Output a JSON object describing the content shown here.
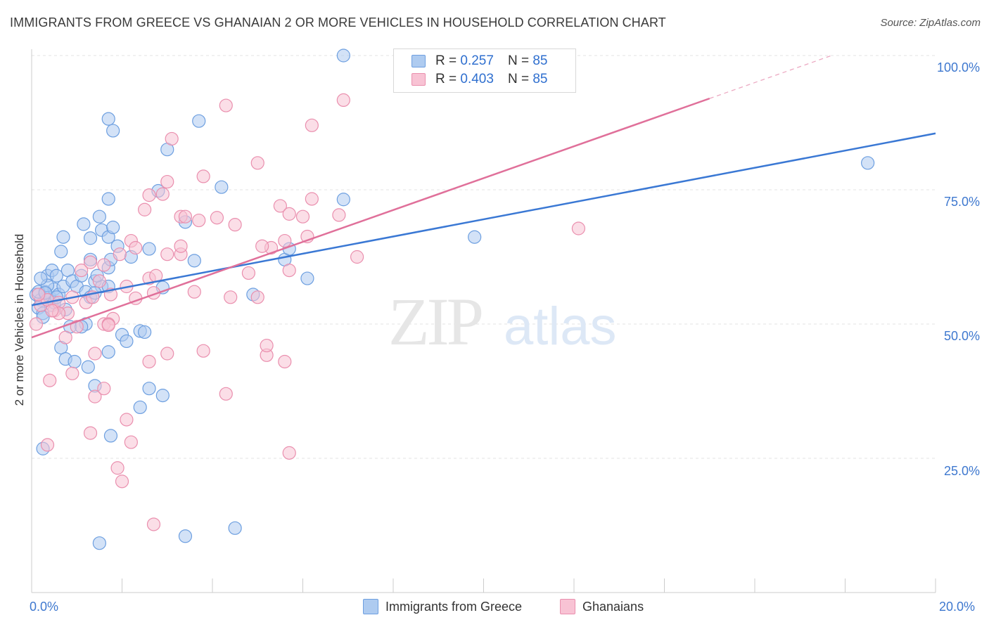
{
  "title": "IMMIGRANTS FROM GREECE VS GHANAIAN 2 OR MORE VEHICLES IN HOUSEHOLD CORRELATION CHART",
  "source": "Source: ZipAtlas.com",
  "watermark": {
    "zip": "ZIP",
    "atlas": "atlas"
  },
  "legend": {
    "rows": [
      {
        "r_label": "R =",
        "r_value": "0.257",
        "n_label": "N =",
        "n_value": "85",
        "color": "#aecbf0",
        "border": "#6d9fe0"
      },
      {
        "r_label": "R =",
        "r_value": "0.403",
        "n_label": "N =",
        "n_value": "85",
        "color": "#f8c3d4",
        "border": "#ea8fae"
      }
    ]
  },
  "bottom_legend": [
    {
      "label": "Immigrants from Greece",
      "color": "#aecbf0",
      "border": "#6d9fe0"
    },
    {
      "label": "Ghanaians",
      "color": "#f8c3d4",
      "border": "#ea8fae"
    }
  ],
  "axes": {
    "ylabel": "2 or more Vehicles in Household",
    "x_tick_labels": [
      "0.0%",
      "20.0%"
    ],
    "y_tick_labels": [
      "100.0%",
      "75.0%",
      "50.0%",
      "25.0%"
    ]
  },
  "chart_data": {
    "type": "scatter",
    "title": "IMMIGRANTS FROM GREECE VS GHANAIAN 2 OR MORE VEHICLES IN HOUSEHOLD CORRELATION CHART",
    "xlabel": "",
    "ylabel": "2 or more Vehicles in Household",
    "xlim": [
      0,
      20
    ],
    "ylim": [
      0,
      102
    ],
    "grid": true,
    "series": [
      {
        "name": "Immigrants from Greece",
        "color": "#6d9fe0",
        "fill": "#aecbf0",
        "trend": {
          "x0": 0,
          "y0": 53.5,
          "x1": 20,
          "y1": 85.5,
          "color": "#3a78d4"
        },
        "points": [
          [
            0.1,
            55.5
          ],
          [
            0.2,
            54.5
          ],
          [
            0.3,
            56
          ],
          [
            0.15,
            53
          ],
          [
            0.4,
            55
          ],
          [
            0.5,
            56.5
          ],
          [
            0.25,
            52
          ],
          [
            0.6,
            55.5
          ],
          [
            0.35,
            59
          ],
          [
            0.45,
            60
          ],
          [
            0.55,
            59
          ],
          [
            0.7,
            57
          ],
          [
            0.8,
            60
          ],
          [
            0.9,
            58
          ],
          [
            1.0,
            57
          ],
          [
            1.1,
            59
          ],
          [
            1.2,
            56
          ],
          [
            1.3,
            55
          ],
          [
            1.4,
            58
          ],
          [
            0.65,
            63.5
          ],
          [
            0.7,
            66.2
          ],
          [
            1.15,
            68.6
          ],
          [
            1.3,
            66
          ],
          [
            1.55,
            67.5
          ],
          [
            1.5,
            70
          ],
          [
            1.7,
            66.2
          ],
          [
            1.8,
            68
          ],
          [
            1.7,
            60.5
          ],
          [
            1.75,
            62
          ],
          [
            1.55,
            57
          ],
          [
            1.9,
            64.5
          ],
          [
            2.6,
            64
          ],
          [
            1.7,
            57
          ],
          [
            2.2,
            62.5
          ],
          [
            2.0,
            48
          ],
          [
            2.4,
            48.7
          ],
          [
            2.1,
            46.8
          ],
          [
            2.5,
            48.5
          ],
          [
            1.7,
            44.8
          ],
          [
            0.65,
            45.6
          ],
          [
            0.75,
            43.5
          ],
          [
            0.95,
            43
          ],
          [
            0.85,
            49.5
          ],
          [
            1.25,
            42
          ],
          [
            1.4,
            38.5
          ],
          [
            2.6,
            38
          ],
          [
            2.9,
            36.7
          ],
          [
            2.4,
            34.5
          ],
          [
            1.75,
            29.2
          ],
          [
            0.25,
            26.8
          ],
          [
            1.5,
            9.2
          ],
          [
            3.4,
            10.5
          ],
          [
            4.5,
            12
          ],
          [
            1.7,
            88.2
          ],
          [
            1.8,
            86
          ],
          [
            3.7,
            87.8
          ],
          [
            3.0,
            82.5
          ],
          [
            4.2,
            75.5
          ],
          [
            2.8,
            74.8
          ],
          [
            1.7,
            73.3
          ],
          [
            6.9,
            73.2
          ],
          [
            3.4,
            69
          ],
          [
            3.6,
            61.8
          ],
          [
            5.6,
            62
          ],
          [
            5.7,
            64
          ],
          [
            4.9,
            55.5
          ],
          [
            6.1,
            58.5
          ],
          [
            2.9,
            56.8
          ],
          [
            1.2,
            50
          ],
          [
            1.1,
            49.5
          ],
          [
            6.9,
            100
          ],
          [
            18.5,
            80
          ],
          [
            9.8,
            66.2
          ],
          [
            0.15,
            56
          ],
          [
            0.35,
            57.2
          ],
          [
            0.45,
            53.5
          ],
          [
            0.5,
            54
          ],
          [
            0.55,
            55
          ],
          [
            0.75,
            52.7
          ],
          [
            0.3,
            55.8
          ],
          [
            0.25,
            51.3
          ],
          [
            1.4,
            55.8
          ],
          [
            1.45,
            59
          ],
          [
            1.3,
            62
          ],
          [
            0.2,
            58.5
          ]
        ]
      },
      {
        "name": "Ghanaians",
        "color": "#ea8fae",
        "fill": "#f8c3d4",
        "trend": {
          "x0": 0,
          "y0": 47.5,
          "x1": 15,
          "y1": 92,
          "color": "#e0709a"
        },
        "trend_dashed": {
          "x0": 15,
          "y0": 92,
          "x1": 17.7,
          "y1": 100
        },
        "points": [
          [
            0.1,
            50
          ],
          [
            0.2,
            53.5
          ],
          [
            0.35,
            54.5
          ],
          [
            0.5,
            52.5
          ],
          [
            0.6,
            54
          ],
          [
            0.8,
            52
          ],
          [
            0.9,
            55
          ],
          [
            1.0,
            49.5
          ],
          [
            0.75,
            47.5
          ],
          [
            1.2,
            54
          ],
          [
            1.1,
            60
          ],
          [
            1.35,
            55
          ],
          [
            1.5,
            58
          ],
          [
            1.6,
            61
          ],
          [
            1.3,
            61.5
          ],
          [
            1.95,
            63
          ],
          [
            2.2,
            65.5
          ],
          [
            2.3,
            64.2
          ],
          [
            2.1,
            57
          ],
          [
            2.6,
            58.5
          ],
          [
            2.7,
            55.8
          ],
          [
            2.75,
            59
          ],
          [
            3.0,
            63
          ],
          [
            3.3,
            63
          ],
          [
            3.6,
            56
          ],
          [
            3.3,
            64.5
          ],
          [
            4.4,
            55
          ],
          [
            4.8,
            59.5
          ],
          [
            5.3,
            64.2
          ],
          [
            5.6,
            65.5
          ],
          [
            6.1,
            66.3
          ],
          [
            6.8,
            70.3
          ],
          [
            7.2,
            62.5
          ],
          [
            5.1,
            64.5
          ],
          [
            4.5,
            68.5
          ],
          [
            4.1,
            69.8
          ],
          [
            3.3,
            70
          ],
          [
            3.7,
            69.3
          ],
          [
            3.4,
            70
          ],
          [
            5.5,
            72
          ],
          [
            5.7,
            70.5
          ],
          [
            6.0,
            70
          ],
          [
            6.2,
            73.3
          ],
          [
            3.8,
            77.5
          ],
          [
            3.0,
            76.5
          ],
          [
            2.6,
            74
          ],
          [
            2.9,
            74.2
          ],
          [
            2.5,
            71.3
          ],
          [
            3.1,
            84.5
          ],
          [
            4.3,
            90.7
          ],
          [
            5.0,
            80
          ],
          [
            6.2,
            87
          ],
          [
            6.9,
            91.7
          ],
          [
            12.1,
            67.8
          ],
          [
            5.7,
            60
          ],
          [
            5.0,
            55
          ],
          [
            3.0,
            44.5
          ],
          [
            2.6,
            43
          ],
          [
            3.8,
            45
          ],
          [
            5.2,
            44.2
          ],
          [
            5.6,
            43
          ],
          [
            5.2,
            46
          ],
          [
            0.4,
            39.5
          ],
          [
            1.4,
            36.5
          ],
          [
            1.6,
            38
          ],
          [
            2.1,
            32.2
          ],
          [
            2.2,
            28
          ],
          [
            1.3,
            29.7
          ],
          [
            1.9,
            23.2
          ],
          [
            2.0,
            20.7
          ],
          [
            2.7,
            12.7
          ],
          [
            4.3,
            37
          ],
          [
            5.7,
            26
          ],
          [
            0.35,
            27.5
          ],
          [
            1.6,
            50
          ],
          [
            1.8,
            51
          ],
          [
            1.7,
            50
          ],
          [
            0.6,
            52
          ],
          [
            1.4,
            44.5
          ],
          [
            0.15,
            55.5
          ],
          [
            0.45,
            52.5
          ],
          [
            2.3,
            54.8
          ],
          [
            1.75,
            55.5
          ],
          [
            0.9,
            40.8
          ],
          [
            1.7,
            49.8
          ]
        ]
      }
    ]
  }
}
